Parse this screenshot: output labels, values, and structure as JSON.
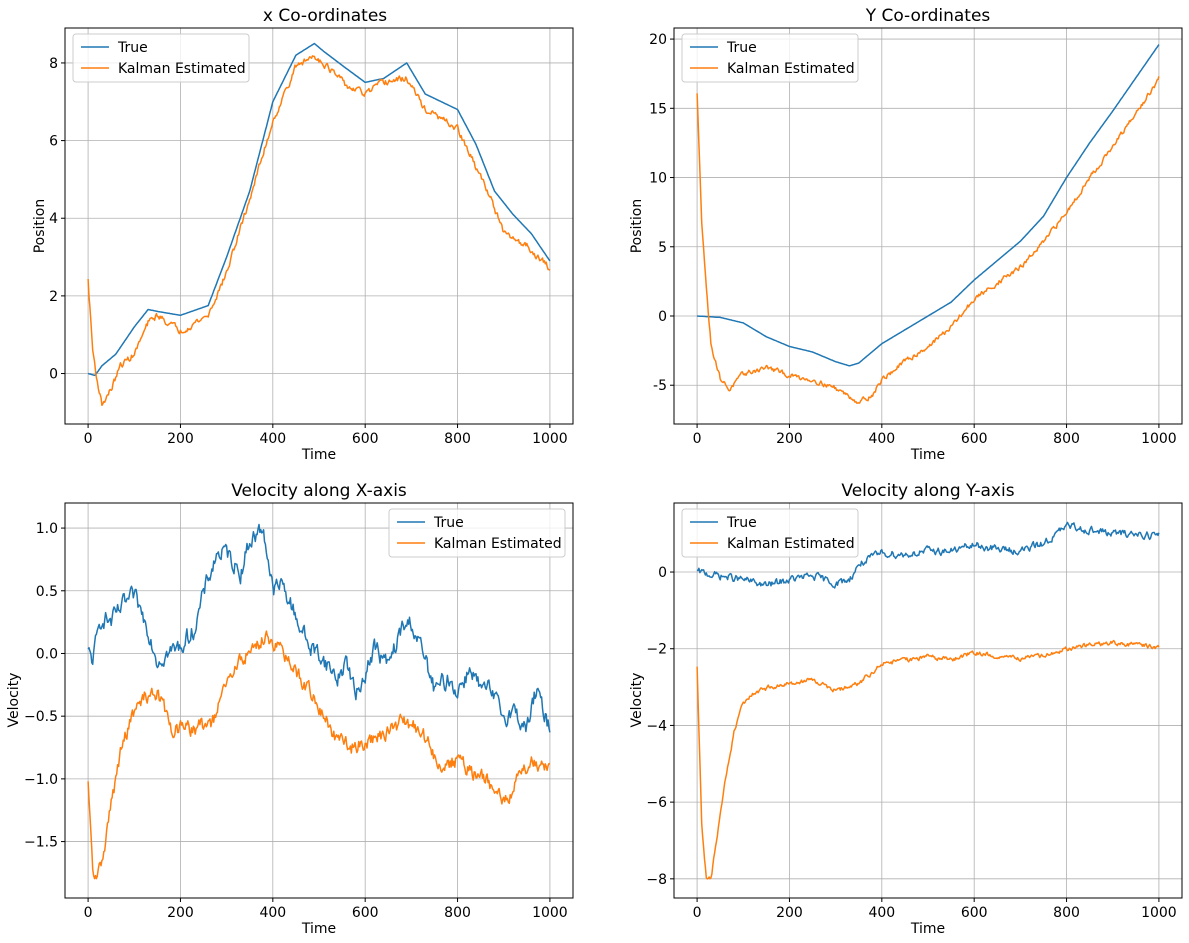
{
  "chart_data": [
    {
      "type": "line",
      "title": "x Co-ordinates",
      "xlabel": "Time",
      "ylabel": "Position",
      "xlim": [
        -50,
        1050
      ],
      "ylim": [
        -1.3,
        8.9
      ],
      "xticks": [
        0,
        200,
        400,
        600,
        800,
        1000
      ],
      "yticks": [
        0,
        2,
        4,
        6,
        8
      ],
      "grid": true,
      "legend": "upper-left",
      "series": [
        {
          "name": "True",
          "color": "#1f77b4",
          "noise": 0.0,
          "x": [
            0,
            15,
            30,
            60,
            100,
            130,
            150,
            200,
            260,
            300,
            350,
            400,
            450,
            490,
            510,
            560,
            600,
            640,
            690,
            730,
            800,
            840,
            880,
            920,
            960,
            1000
          ],
          "y": [
            0.0,
            -0.05,
            0.2,
            0.5,
            1.2,
            1.65,
            1.6,
            1.5,
            1.75,
            3.0,
            4.7,
            7.0,
            8.2,
            8.5,
            8.3,
            7.85,
            7.5,
            7.6,
            8.0,
            7.2,
            6.8,
            5.9,
            4.7,
            4.1,
            3.6,
            2.9
          ]
        },
        {
          "name": "Kalman Estimated",
          "color": "#ff7f0e",
          "noise": 0.07,
          "x": [
            0,
            10,
            20,
            30,
            50,
            70,
            100,
            130,
            150,
            200,
            260,
            300,
            350,
            400,
            450,
            490,
            510,
            560,
            600,
            640,
            690,
            730,
            800,
            840,
            870,
            900,
            950,
            1000
          ],
          "y": [
            2.4,
            0.6,
            -0.2,
            -0.8,
            -0.4,
            0.2,
            0.5,
            1.3,
            1.5,
            1.1,
            1.5,
            2.6,
            4.5,
            6.5,
            7.9,
            8.2,
            8.0,
            7.4,
            7.2,
            7.5,
            7.6,
            6.8,
            6.3,
            5.3,
            4.6,
            3.6,
            3.3,
            2.7
          ]
        }
      ]
    },
    {
      "type": "line",
      "title": "Y Co-ordinates",
      "xlabel": "Time",
      "ylabel": "Position",
      "xlim": [
        -50,
        1050
      ],
      "ylim": [
        -7.8,
        20.8
      ],
      "xticks": [
        0,
        200,
        400,
        600,
        800,
        1000
      ],
      "yticks": [
        -5,
        0,
        5,
        10,
        15,
        20
      ],
      "grid": true,
      "legend": "upper-left",
      "series": [
        {
          "name": "True",
          "color": "#1f77b4",
          "noise": 0.0,
          "x": [
            0,
            50,
            100,
            150,
            200,
            250,
            300,
            330,
            350,
            400,
            450,
            500,
            550,
            600,
            650,
            700,
            750,
            800,
            850,
            900,
            950,
            1000
          ],
          "y": [
            0.0,
            -0.1,
            -0.5,
            -1.5,
            -2.2,
            -2.6,
            -3.3,
            -3.6,
            -3.4,
            -2.0,
            -1.0,
            0.0,
            1.0,
            2.6,
            4.0,
            5.4,
            7.2,
            10.0,
            12.5,
            14.8,
            17.2,
            19.6
          ]
        },
        {
          "name": "Kalman Estimated",
          "color": "#ff7f0e",
          "noise": 0.15,
          "x": [
            0,
            10,
            20,
            30,
            50,
            70,
            100,
            150,
            200,
            250,
            300,
            350,
            380,
            400,
            450,
            500,
            550,
            600,
            650,
            700,
            750,
            800,
            850,
            900,
            950,
            1000
          ],
          "y": [
            16.0,
            7.0,
            2.0,
            -2.0,
            -4.5,
            -5.3,
            -4.2,
            -3.7,
            -4.3,
            -4.6,
            -5.2,
            -6.2,
            -5.7,
            -4.6,
            -3.3,
            -2.2,
            -0.8,
            1.2,
            2.4,
            3.5,
            5.3,
            7.5,
            10.0,
            12.2,
            14.6,
            17.1
          ]
        }
      ]
    },
    {
      "type": "line",
      "title": "Velocity along X-axis",
      "xlabel": "Time",
      "ylabel": "Velocity",
      "xlim": [
        -50,
        1050
      ],
      "ylim": [
        -1.95,
        1.2
      ],
      "xticks": [
        0,
        200,
        400,
        600,
        800,
        1000
      ],
      "yticks": [
        -1.5,
        -1.0,
        -0.5,
        0.0,
        0.5,
        1.0
      ],
      "ytick_labels": [
        "−1.5",
        "−1.0",
        "−0.5",
        "0.0",
        "0.5",
        "1.0"
      ],
      "grid": true,
      "legend": "upper-right",
      "series": [
        {
          "name": "True",
          "color": "#1f77b4",
          "noise": 0.06,
          "x": [
            0,
            10,
            30,
            50,
            80,
            100,
            130,
            150,
            170,
            200,
            230,
            260,
            280,
            300,
            330,
            350,
            380,
            400,
            420,
            450,
            480,
            500,
            520,
            540,
            560,
            580,
            600,
            620,
            650,
            680,
            700,
            730,
            750,
            780,
            800,
            830,
            850,
            870,
            900,
            920,
            950,
            970,
            1000
          ],
          "y": [
            0.0,
            -0.05,
            0.3,
            0.25,
            0.4,
            0.45,
            0.2,
            -0.05,
            0.0,
            0.05,
            0.2,
            0.6,
            0.8,
            0.8,
            0.65,
            0.9,
            1.0,
            0.5,
            0.55,
            0.3,
            0.05,
            0.0,
            -0.1,
            -0.2,
            -0.05,
            -0.35,
            -0.15,
            0.05,
            -0.1,
            0.2,
            0.25,
            -0.05,
            -0.3,
            -0.2,
            -0.3,
            -0.1,
            -0.3,
            -0.3,
            -0.5,
            -0.45,
            -0.6,
            -0.3,
            -0.6
          ]
        },
        {
          "name": "Kalman Estimated",
          "color": "#ff7f0e",
          "noise": 0.05,
          "x": [
            0,
            10,
            20,
            30,
            50,
            70,
            90,
            120,
            150,
            180,
            200,
            230,
            270,
            300,
            330,
            360,
            390,
            420,
            450,
            480,
            510,
            540,
            570,
            600,
            640,
            680,
            720,
            760,
            800,
            830,
            860,
            880,
            900,
            930,
            960,
            1000
          ],
          "y": [
            -1.05,
            -1.75,
            -1.8,
            -1.65,
            -1.2,
            -0.8,
            -0.55,
            -0.35,
            -0.3,
            -0.6,
            -0.6,
            -0.6,
            -0.55,
            -0.25,
            -0.05,
            0.05,
            0.15,
            0.0,
            -0.15,
            -0.3,
            -0.5,
            -0.7,
            -0.75,
            -0.7,
            -0.65,
            -0.55,
            -0.6,
            -0.9,
            -0.85,
            -0.95,
            -1.0,
            -1.1,
            -1.2,
            -1.0,
            -0.85,
            -0.9
          ]
        }
      ]
    },
    {
      "type": "line",
      "title": "Velocity along Y-axis",
      "xlabel": "Time",
      "ylabel": "Velocity",
      "xlim": [
        -50,
        1050
      ],
      "ylim": [
        -8.5,
        1.8
      ],
      "xticks": [
        0,
        200,
        400,
        600,
        800,
        1000
      ],
      "yticks": [
        -8,
        -6,
        -4,
        -2,
        0
      ],
      "ytick_labels": [
        "−8",
        "−6",
        "−4",
        "−2",
        "0"
      ],
      "grid": true,
      "legend": "upper-left",
      "series": [
        {
          "name": "True",
          "color": "#1f77b4",
          "noise": 0.08,
          "x": [
            0,
            50,
            100,
            150,
            200,
            250,
            300,
            330,
            350,
            400,
            450,
            500,
            550,
            600,
            650,
            700,
            750,
            780,
            800,
            850,
            900,
            950,
            1000
          ],
          "y": [
            0.0,
            -0.1,
            -0.2,
            -0.35,
            -0.2,
            -0.1,
            -0.3,
            -0.2,
            0.2,
            0.5,
            0.45,
            0.55,
            0.55,
            0.7,
            0.6,
            0.55,
            0.75,
            1.0,
            1.2,
            1.1,
            1.0,
            1.0,
            0.95
          ]
        },
        {
          "name": "Kalman Estimated",
          "color": "#ff7f0e",
          "noise": 0.05,
          "x": [
            0,
            10,
            20,
            30,
            40,
            60,
            80,
            100,
            130,
            160,
            200,
            250,
            300,
            350,
            400,
            450,
            500,
            550,
            600,
            650,
            700,
            750,
            800,
            850,
            900,
            950,
            1000
          ],
          "y": [
            -2.5,
            -6.5,
            -8.0,
            -8.0,
            -7.2,
            -5.5,
            -4.2,
            -3.4,
            -3.1,
            -3.0,
            -2.9,
            -2.8,
            -3.1,
            -2.9,
            -2.4,
            -2.3,
            -2.2,
            -2.3,
            -2.1,
            -2.2,
            -2.25,
            -2.2,
            -2.0,
            -1.9,
            -1.85,
            -1.9,
            -1.95
          ]
        }
      ]
    }
  ]
}
